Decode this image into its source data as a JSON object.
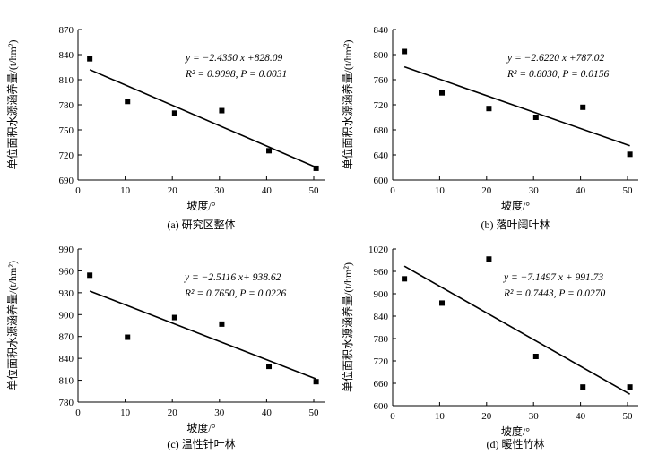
{
  "chart_data": [
    {
      "type": "scatter",
      "xlabel": "坡度/°",
      "ylabel": "单位面积水源涵养量/(t/hm²)",
      "caption": "(a) 研究区整体",
      "xlim": [
        0,
        50
      ],
      "ylim": [
        690,
        870
      ],
      "xticks": [
        "0",
        "10",
        "20",
        "30",
        "40",
        "50"
      ],
      "yticks": [
        "690",
        "720",
        "750",
        "780",
        "810",
        "840",
        "870"
      ],
      "points": [
        [
          2.5,
          835
        ],
        [
          10.5,
          784
        ],
        [
          20.5,
          770
        ],
        [
          30.5,
          773
        ],
        [
          40.5,
          725
        ],
        [
          50.5,
          704
        ]
      ],
      "fit": {
        "slope": -2.435,
        "intercept": 828.09,
        "x_range": [
          2.5,
          50.5
        ]
      },
      "equation": "y = −2.4350 x +828.09",
      "stats": "R² = 0.9098, P = 0.0031"
    },
    {
      "type": "scatter",
      "xlabel": "坡度/°",
      "ylabel": "单位面积水源涵养量/(t/hm²)",
      "caption": "(b) 落叶阔叶林",
      "xlim": [
        0,
        50
      ],
      "ylim": [
        600,
        840
      ],
      "xticks": [
        "0",
        "10",
        "20",
        "30",
        "40",
        "50"
      ],
      "yticks": [
        "600",
        "640",
        "680",
        "720",
        "760",
        "800",
        "840"
      ],
      "points": [
        [
          2.5,
          805
        ],
        [
          10.5,
          739
        ],
        [
          20.5,
          714
        ],
        [
          30.5,
          700
        ],
        [
          40.5,
          716
        ],
        [
          50.5,
          641
        ]
      ],
      "fit": {
        "slope": -2.622,
        "intercept": 787.02,
        "x_range": [
          2.5,
          50.5
        ]
      },
      "equation": "y = −2.6220 x +787.02",
      "stats": "R² = 0.8030, P = 0.0156"
    },
    {
      "type": "scatter",
      "xlabel": "坡度/°",
      "ylabel": "单位面积水源涵养量/(t/hm²)",
      "caption": "(c) 温性针叶林",
      "xlim": [
        0,
        50
      ],
      "ylim": [
        780,
        990
      ],
      "xticks": [
        "0",
        "10",
        "20",
        "30",
        "40",
        "50"
      ],
      "yticks": [
        "780",
        "810",
        "840",
        "870",
        "900",
        "930",
        "960",
        "990"
      ],
      "points": [
        [
          2.5,
          954
        ],
        [
          10.5,
          869
        ],
        [
          20.5,
          896
        ],
        [
          30.5,
          887
        ],
        [
          40.5,
          829
        ],
        [
          50.5,
          808
        ]
      ],
      "fit": {
        "slope": -2.5116,
        "intercept": 938.62,
        "x_range": [
          2.5,
          50.5
        ]
      },
      "equation": "y = −2.5116 x+ 938.62",
      "stats": "R² = 0.7650, P = 0.0226"
    },
    {
      "type": "scatter",
      "xlabel": "坡度/°",
      "ylabel": "单位面积水源涵养量/(t/hm²)",
      "caption": "(d) 暖性竹林",
      "xlim": [
        0,
        50
      ],
      "ylim": [
        600,
        1020
      ],
      "xticks": [
        "0",
        "10",
        "20",
        "30",
        "40",
        "50"
      ],
      "yticks": [
        "600",
        "660",
        "720",
        "780",
        "840",
        "900",
        "960",
        "1020"
      ],
      "points": [
        [
          2.5,
          940
        ],
        [
          10.5,
          875
        ],
        [
          20.5,
          993
        ],
        [
          30.5,
          732
        ],
        [
          40.5,
          650
        ],
        [
          50.5,
          650
        ]
      ],
      "fit": {
        "slope": -7.1497,
        "intercept": 991.73,
        "x_range": [
          2.5,
          50.5
        ]
      },
      "equation": "y = −7.1497 x + 991.73",
      "stats": "R² = 0.7443, P = 0.0270"
    }
  ]
}
